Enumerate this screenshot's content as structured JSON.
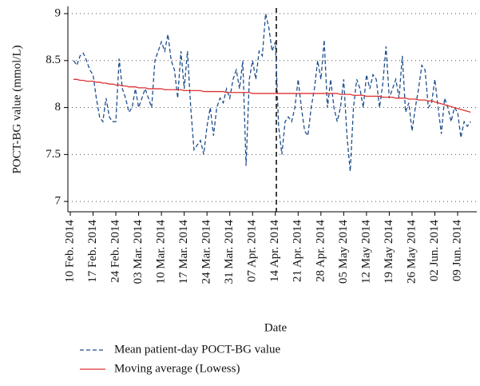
{
  "chart_data": {
    "type": "line",
    "x_label": "Date",
    "y_label": "POCT-BG value (mmol/L)",
    "categories": [
      "10 Feb. 2014",
      null,
      null,
      null,
      null,
      null,
      null,
      "17 Feb. 2014",
      null,
      null,
      null,
      null,
      null,
      null,
      "24 Feb. 2014",
      null,
      null,
      null,
      null,
      null,
      null,
      "03 Mar. 2014",
      null,
      null,
      null,
      null,
      null,
      null,
      "10 Mar. 2014",
      null,
      null,
      null,
      null,
      null,
      null,
      "17 Mar. 2014",
      null,
      null,
      null,
      null,
      null,
      null,
      "24 Mar. 2014",
      null,
      null,
      null,
      null,
      null,
      null,
      "31 Mar. 2014",
      null,
      null,
      null,
      null,
      null,
      null,
      "07 Apr. 2014",
      null,
      null,
      null,
      null,
      null,
      null,
      "14 Apr. 2014",
      null,
      null,
      null,
      null,
      null,
      null,
      "21 Apr. 2014",
      null,
      null,
      null,
      null,
      null,
      null,
      "28 Apr. 2014",
      null,
      null,
      null,
      null,
      null,
      null,
      "05 May 2014",
      null,
      null,
      null,
      null,
      null,
      null,
      "12 May 2014",
      null,
      null,
      null,
      null,
      null,
      null,
      "19 May 2014",
      null,
      null,
      null,
      null,
      null,
      null,
      "26 May 2014",
      null,
      null,
      null,
      null,
      null,
      null,
      "02 Jun. 2014",
      null,
      null,
      null,
      null,
      null,
      null,
      "09 Jun. 2014",
      null,
      null,
      null,
      null,
      null
    ],
    "series": [
      {
        "name": "Mean patient-day POCT-BG value",
        "color": "#1f4e8c",
        "dashed": true,
        "values": [
          null,
          8.5,
          8.45,
          8.55,
          8.58,
          8.5,
          8.4,
          8.35,
          8.1,
          7.9,
          7.85,
          8.1,
          7.9,
          7.85,
          7.85,
          8.52,
          8.2,
          8.1,
          7.95,
          8.0,
          8.2,
          8.0,
          8.1,
          8.2,
          8.1,
          8.0,
          8.5,
          8.6,
          8.7,
          8.6,
          8.78,
          8.5,
          8.4,
          8.1,
          8.6,
          8.2,
          8.6,
          8.0,
          7.55,
          7.6,
          7.65,
          7.5,
          7.8,
          8.0,
          7.7,
          8.0,
          8.1,
          8.05,
          8.2,
          8.1,
          8.3,
          8.4,
          8.2,
          8.5,
          7.38,
          8.3,
          8.5,
          8.3,
          8.6,
          8.55,
          9.0,
          8.85,
          8.6,
          8.7,
          7.8,
          7.5,
          7.85,
          7.9,
          7.85,
          8.0,
          8.3,
          8.0,
          7.75,
          7.7,
          8.0,
          8.2,
          8.5,
          8.3,
          8.72,
          8.0,
          8.3,
          8.0,
          7.85,
          8.0,
          8.3,
          7.7,
          7.32,
          8.0,
          8.3,
          8.2,
          8.0,
          8.35,
          8.2,
          8.35,
          8.3,
          8.0,
          8.25,
          8.65,
          8.1,
          8.2,
          8.3,
          8.1,
          8.55,
          7.95,
          8.05,
          7.75,
          8.0,
          8.2,
          8.45,
          8.4,
          8.0,
          8.05,
          8.3,
          8.0,
          7.72,
          8.1,
          8.0,
          7.85,
          8.0,
          7.95,
          7.68,
          7.85,
          7.8,
          7.85,
          null
        ]
      },
      {
        "name": "Moving average (Lowess)",
        "color": "#e03030",
        "dashed": false,
        "values": [
          null,
          8.3,
          8.3,
          8.29,
          8.29,
          8.28,
          8.28,
          8.28,
          8.27,
          8.27,
          8.26,
          8.26,
          8.25,
          8.25,
          8.24,
          8.24,
          8.23,
          8.23,
          8.22,
          8.22,
          8.22,
          8.21,
          8.21,
          8.21,
          8.2,
          8.2,
          8.2,
          8.2,
          8.2,
          8.19,
          8.19,
          8.19,
          8.19,
          8.19,
          8.19,
          8.18,
          8.18,
          8.18,
          8.18,
          8.18,
          8.18,
          8.17,
          8.17,
          8.17,
          8.17,
          8.17,
          8.17,
          8.17,
          8.16,
          8.16,
          8.16,
          8.16,
          8.16,
          8.16,
          8.16,
          8.16,
          8.15,
          8.15,
          8.15,
          8.15,
          8.15,
          8.15,
          8.15,
          8.15,
          8.15,
          8.15,
          8.15,
          8.15,
          8.15,
          8.15,
          8.15,
          8.15,
          8.15,
          8.15,
          8.15,
          8.15,
          8.15,
          8.15,
          8.15,
          8.15,
          8.15,
          8.15,
          8.15,
          8.14,
          8.14,
          8.14,
          8.14,
          8.13,
          8.13,
          8.13,
          8.13,
          8.12,
          8.12,
          8.12,
          8.12,
          8.12,
          8.11,
          8.11,
          8.11,
          8.11,
          8.1,
          8.1,
          8.1,
          8.1,
          8.09,
          8.09,
          8.09,
          8.08,
          8.08,
          8.08,
          8.07,
          8.07,
          8.06,
          8.05,
          8.04,
          8.03,
          8.02,
          8.01,
          8.0,
          7.99,
          7.98,
          7.97,
          7.96,
          7.95,
          null
        ]
      }
    ],
    "ylim": [
      6.89,
      9.06
    ],
    "yticks": [
      7,
      7.5,
      8,
      8.5,
      9
    ],
    "grid": true
  }
}
